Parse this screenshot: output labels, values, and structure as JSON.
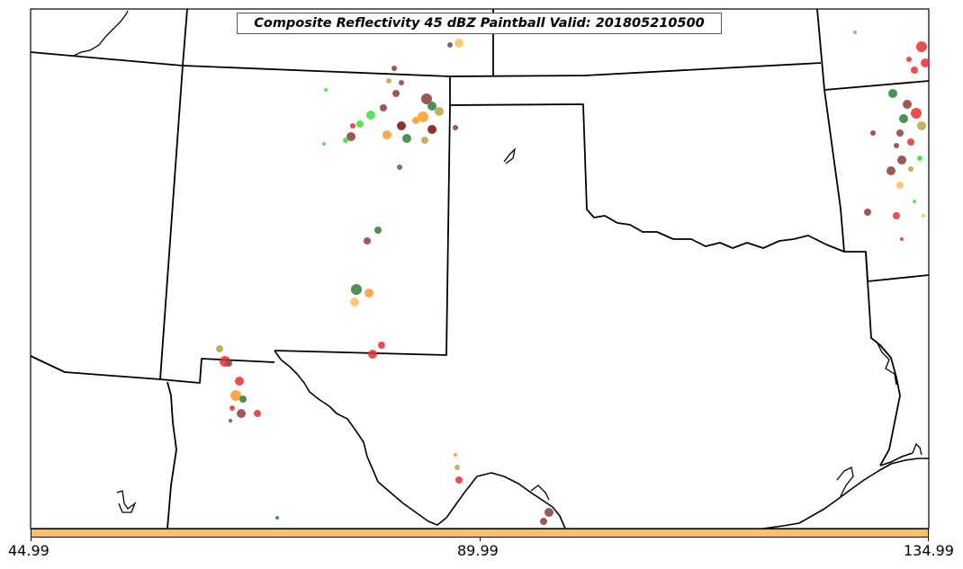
{
  "map": {
    "title": "Composite Reflectivity 45 dBZ Paintball Valid: 201805210500",
    "projection": "Lambert conformal (southern plains)",
    "boundaries": [
      "state borders",
      "coastline"
    ],
    "colors": {
      "background": "#ffffff",
      "border": "#000000",
      "colorbar_fill": "#fcbf63",
      "paintball_palette": [
        "#8b3a3a",
        "#2e7d32",
        "#b5a642",
        "#ff9a2a",
        "#e83030",
        "#3be03b",
        "#7a1010",
        "#555555"
      ]
    }
  },
  "colorbar": {
    "ticks": [
      "44.99",
      "89.99",
      "134.99"
    ]
  }
}
